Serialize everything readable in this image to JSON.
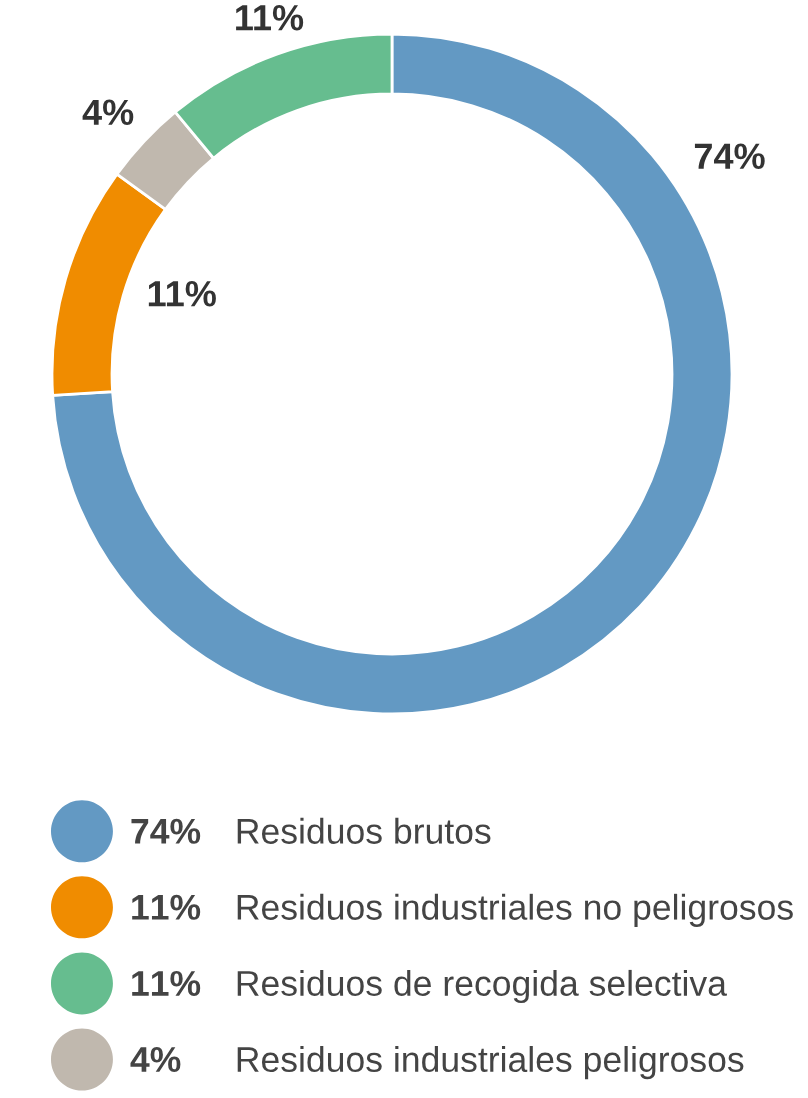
{
  "chart_data": {
    "type": "donut",
    "categories": [
      "Residuos brutos",
      "Residuos industriales no peligrosos",
      "Residuos industriales peligrosos",
      "Residuos de recogida selectiva"
    ],
    "values": [
      74,
      11,
      4,
      11
    ],
    "colors": [
      "#6399c3",
      "#f08c00",
      "#c0b8ae",
      "#66bd8f"
    ],
    "value_labels": [
      "74%",
      "11%",
      "4%",
      "11%"
    ],
    "legend": "bottom"
  }
}
